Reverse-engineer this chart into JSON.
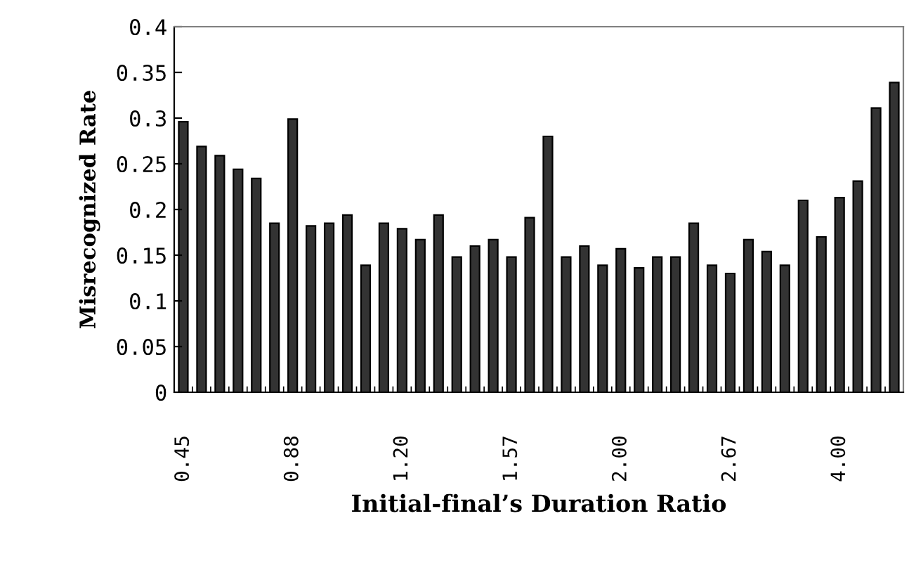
{
  "chart_data": {
    "type": "bar",
    "xlabel": "Initial-final’s Duration Ratio",
    "ylabel": "Misrecognized Rate",
    "categories": [
      "0.45",
      null,
      null,
      null,
      null,
      null,
      "0.88",
      null,
      null,
      null,
      null,
      null,
      "1.20",
      null,
      null,
      null,
      null,
      null,
      "1.57",
      null,
      null,
      null,
      null,
      null,
      "2.00",
      null,
      null,
      null,
      null,
      null,
      "2.67",
      null,
      null,
      null,
      null,
      null,
      "4.00",
      null,
      null,
      null
    ],
    "values": [
      0.296,
      0.269,
      0.259,
      0.244,
      0.234,
      0.185,
      0.299,
      0.182,
      0.185,
      0.194,
      0.139,
      0.185,
      0.179,
      0.167,
      0.194,
      0.148,
      0.16,
      0.167,
      0.148,
      0.191,
      0.28,
      0.148,
      0.16,
      0.139,
      0.157,
      0.136,
      0.148,
      0.148,
      0.185,
      0.139,
      0.13,
      0.167,
      0.154,
      0.139,
      0.21,
      0.17,
      0.213,
      0.231,
      0.311,
      0.339
    ],
    "color": "#333333",
    "ylim": [
      0,
      0.4
    ],
    "yticks": [
      0,
      0.05,
      0.1,
      0.15,
      0.2,
      0.25,
      0.3,
      0.35,
      0.4
    ],
    "grid": false,
    "legend": false
  }
}
